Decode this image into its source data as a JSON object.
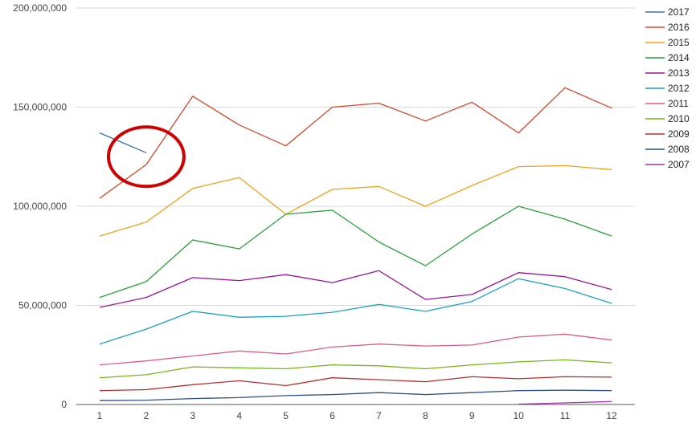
{
  "chart_data": {
    "type": "line",
    "x": [
      1,
      2,
      3,
      4,
      5,
      6,
      7,
      8,
      9,
      10,
      11,
      12
    ],
    "x_tick_labels": [
      "1",
      "2",
      "3",
      "4",
      "5",
      "6",
      "7",
      "8",
      "9",
      "10",
      "11",
      "12"
    ],
    "ylim": [
      0,
      200000000
    ],
    "y_ticks": [
      0,
      50000000,
      100000000,
      150000000,
      200000000
    ],
    "y_tick_labels": [
      "0",
      "50,000,000",
      "100,000,000",
      "150,000,000",
      "200,000,000"
    ],
    "grid": true,
    "legend_position": "right",
    "series": [
      {
        "name": "2017",
        "color": "#3b6fa8",
        "values": [
          137000000,
          127000000,
          null,
          null,
          null,
          null,
          null,
          null,
          null,
          null,
          null,
          null
        ]
      },
      {
        "name": "2016",
        "color": "#d2472b",
        "values": [
          104000000,
          121000000,
          155500000,
          141000000,
          130500000,
          150000000,
          152000000,
          143000000,
          152500000,
          137000000,
          159800000,
          149500000
        ]
      },
      {
        "name": "2015",
        "color": "#f0a21d",
        "values": [
          85000000,
          92000000,
          109000000,
          114500000,
          96000000,
          108500000,
          110000000,
          100000000,
          110500000,
          120000000,
          120500000,
          118500000
        ]
      },
      {
        "name": "2014",
        "color": "#28a03a",
        "values": [
          54000000,
          62000000,
          83000000,
          78500000,
          96000000,
          98000000,
          82000000,
          70000000,
          86000000,
          100000000,
          93500000,
          85000000
        ]
      },
      {
        "name": "2013",
        "color": "#9a169a",
        "values": [
          49000000,
          54000000,
          64000000,
          62500000,
          65500000,
          61500000,
          67500000,
          53000000,
          55500000,
          66500000,
          64500000,
          58000000
        ]
      },
      {
        "name": "2012",
        "color": "#1ba1c4",
        "values": [
          30500000,
          38000000,
          47000000,
          44000000,
          44500000,
          46500000,
          50500000,
          47000000,
          52000000,
          63500000,
          58500000,
          51000000
        ]
      },
      {
        "name": "2011",
        "color": "#dd5c8a",
        "values": [
          20000000,
          22000000,
          24500000,
          27000000,
          25500000,
          29000000,
          30500000,
          29500000,
          30000000,
          34000000,
          35500000,
          32500000
        ]
      },
      {
        "name": "2010",
        "color": "#77b519",
        "values": [
          13500000,
          15000000,
          19000000,
          18500000,
          18000000,
          20000000,
          19500000,
          18000000,
          20000000,
          21500000,
          22500000,
          21000000
        ]
      },
      {
        "name": "2009",
        "color": "#b22f2f",
        "values": [
          7000000,
          7500000,
          10000000,
          12000000,
          9500000,
          13500000,
          12500000,
          11500000,
          14000000,
          13000000,
          14000000,
          13800000
        ]
      },
      {
        "name": "2008",
        "color": "#2f4f7f",
        "values": [
          2000000,
          2200000,
          3000000,
          3500000,
          4500000,
          5000000,
          6000000,
          5000000,
          6000000,
          7000000,
          7200000,
          7000000
        ]
      },
      {
        "name": "2007",
        "color": "#a635a6",
        "values": [
          null,
          null,
          null,
          null,
          null,
          null,
          null,
          null,
          null,
          200000,
          800000,
          1500000
        ]
      }
    ],
    "annotations": [
      {
        "type": "ellipse",
        "color": "#d00000",
        "center_x": 2,
        "center_y": 125000000
      }
    ]
  }
}
